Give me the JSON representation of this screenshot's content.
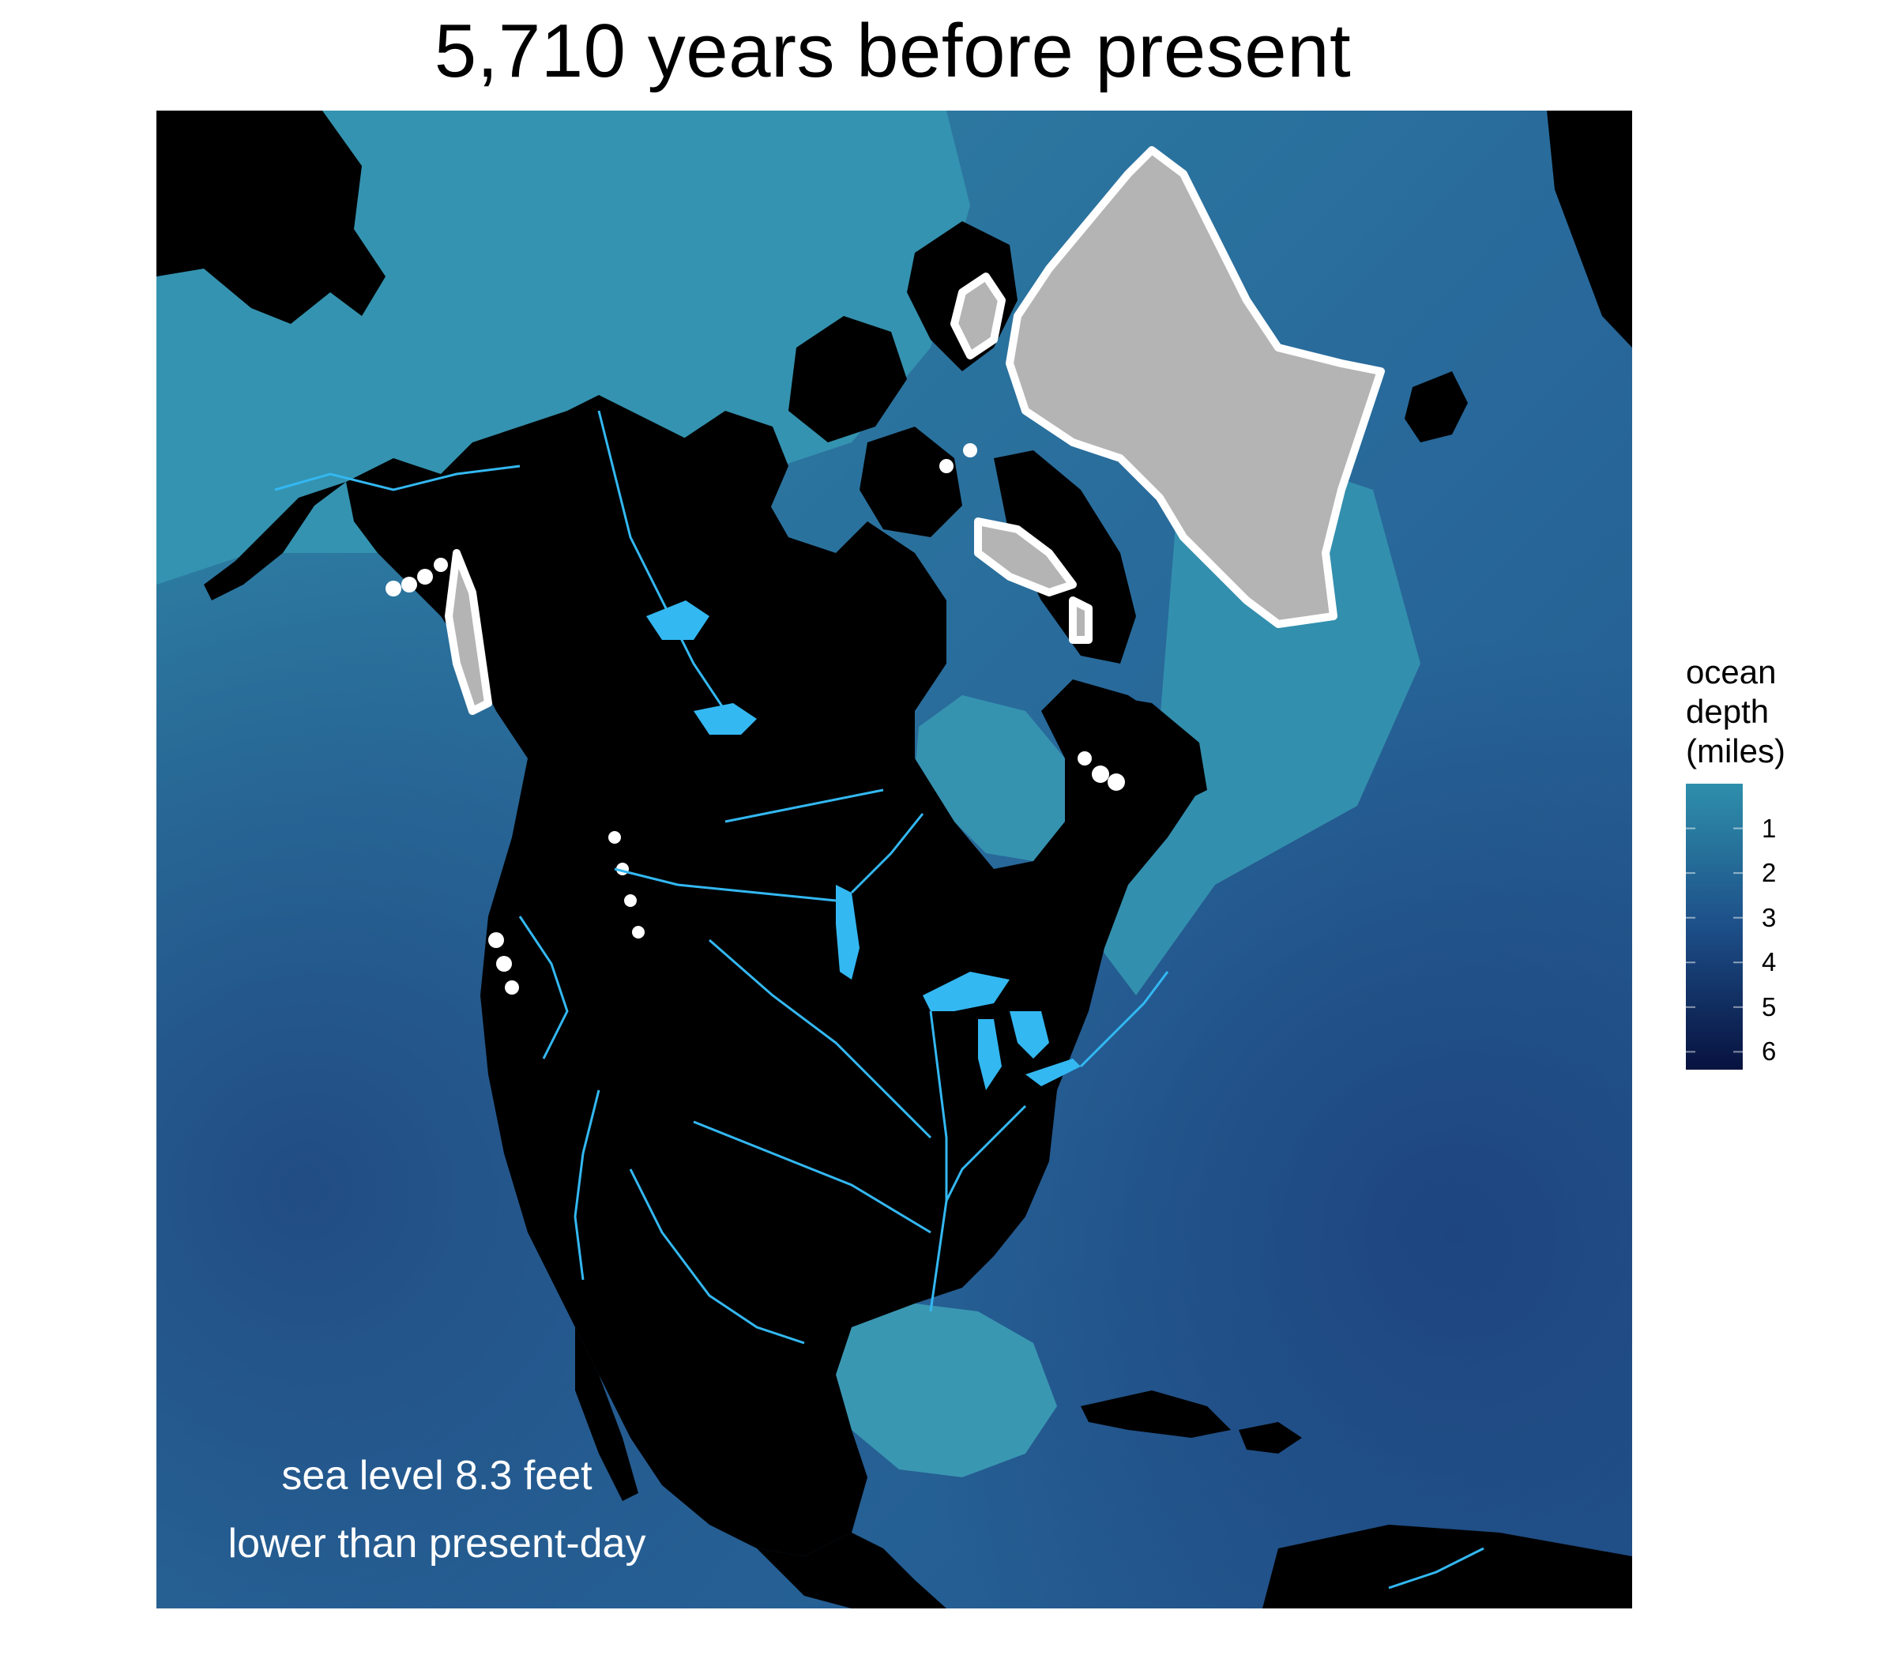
{
  "title": "5,710 years before present",
  "annotation": {
    "line1": "sea level 8.3 feet",
    "line2": "lower than present-day"
  },
  "legend": {
    "title_lines": [
      "ocean",
      "depth",
      "(miles)"
    ],
    "ticks": [
      {
        "label": "1",
        "value": 1
      },
      {
        "label": "2",
        "value": 2
      },
      {
        "label": "3",
        "value": 3
      },
      {
        "label": "4",
        "value": 4
      },
      {
        "label": "5",
        "value": 5
      },
      {
        "label": "6",
        "value": 6
      }
    ],
    "range": [
      0,
      6.4
    ],
    "color_shallow": "#2e8fab",
    "color_deep": "#07123f"
  },
  "colors": {
    "land": "#000000",
    "ocean_shallow": "#3390ad",
    "ocean_mid": "#2a6f9b",
    "ocean_deep": "#224f85",
    "ice_sheet": "#b4b4b4",
    "ice_outline": "#ffffff",
    "freshwater": "#33b8f2"
  }
}
